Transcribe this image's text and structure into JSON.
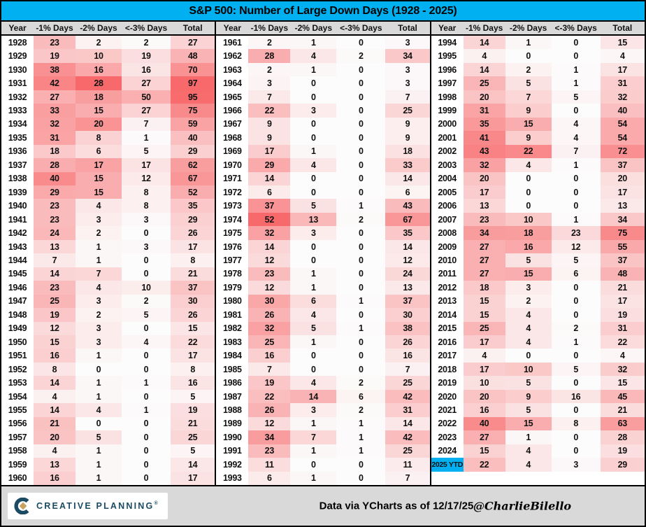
{
  "title": "S&P 500: Number of Large Down Days (1928 - 2025)",
  "colors": {
    "accent_cyan": "#00B0F0",
    "header_gray": "#D9D9D9",
    "heat_red_max": "#F8696B",
    "heat_min_white": "#FCFCFC",
    "logo_navy": "#1B4A63",
    "logo_gold": "#C8A35F"
  },
  "chart_data": {
    "type": "table",
    "title": "S&P 500: Number of Large Down Days (1928 - 2025)",
    "columns": [
      "Year",
      "-1% Days",
      "-2% Days",
      "<-3% Days",
      "Total"
    ],
    "heatmap": {
      "style": "white-to-red linear per column",
      "column_scale_max": [
        52,
        28,
        97,
        97
      ]
    },
    "highlighted_year": "2025 YTD",
    "groups": [
      {
        "rows": [
          [
            "1928",
            23,
            2,
            2,
            27
          ],
          [
            "1929",
            19,
            10,
            19,
            48
          ],
          [
            "1930",
            38,
            16,
            16,
            70
          ],
          [
            "1931",
            42,
            28,
            27,
            97
          ],
          [
            "1932",
            27,
            18,
            50,
            95
          ],
          [
            "1933",
            33,
            15,
            27,
            75
          ],
          [
            "1934",
            32,
            20,
            7,
            59
          ],
          [
            "1935",
            31,
            8,
            1,
            40
          ],
          [
            "1936",
            18,
            6,
            5,
            29
          ],
          [
            "1937",
            28,
            17,
            17,
            62
          ],
          [
            "1938",
            40,
            15,
            12,
            67
          ],
          [
            "1939",
            29,
            15,
            8,
            52
          ],
          [
            "1940",
            23,
            4,
            8,
            35
          ],
          [
            "1941",
            23,
            3,
            3,
            29
          ],
          [
            "1942",
            24,
            2,
            0,
            26
          ],
          [
            "1943",
            13,
            1,
            3,
            17
          ],
          [
            "1944",
            7,
            1,
            0,
            8
          ],
          [
            "1945",
            14,
            7,
            0,
            21
          ],
          [
            "1946",
            23,
            4,
            10,
            37
          ],
          [
            "1947",
            25,
            3,
            2,
            30
          ],
          [
            "1948",
            19,
            2,
            5,
            26
          ],
          [
            "1949",
            12,
            3,
            0,
            15
          ],
          [
            "1950",
            15,
            3,
            4,
            22
          ],
          [
            "1951",
            16,
            1,
            0,
            17
          ],
          [
            "1952",
            8,
            0,
            0,
            8
          ],
          [
            "1953",
            14,
            1,
            1,
            16
          ],
          [
            "1954",
            4,
            1,
            0,
            5
          ],
          [
            "1955",
            14,
            4,
            1,
            19
          ],
          [
            "1956",
            21,
            0,
            0,
            21
          ],
          [
            "1957",
            20,
            5,
            0,
            25
          ],
          [
            "1958",
            4,
            1,
            0,
            5
          ],
          [
            "1959",
            13,
            1,
            0,
            14
          ],
          [
            "1960",
            16,
            1,
            0,
            17
          ]
        ]
      },
      {
        "rows": [
          [
            "1961",
            2,
            1,
            0,
            3
          ],
          [
            "1962",
            28,
            4,
            2,
            34
          ],
          [
            "1963",
            2,
            1,
            0,
            3
          ],
          [
            "1964",
            3,
            0,
            0,
            3
          ],
          [
            "1965",
            7,
            0,
            0,
            7
          ],
          [
            "1966",
            22,
            3,
            0,
            25
          ],
          [
            "1967",
            9,
            0,
            0,
            9
          ],
          [
            "1968",
            9,
            0,
            0,
            9
          ],
          [
            "1969",
            17,
            1,
            0,
            18
          ],
          [
            "1970",
            29,
            4,
            0,
            33
          ],
          [
            "1971",
            14,
            0,
            0,
            14
          ],
          [
            "1972",
            6,
            0,
            0,
            6
          ],
          [
            "1973",
            37,
            5,
            1,
            43
          ],
          [
            "1974",
            52,
            13,
            2,
            67
          ],
          [
            "1975",
            32,
            3,
            0,
            35
          ],
          [
            "1976",
            14,
            0,
            0,
            14
          ],
          [
            "1977",
            12,
            0,
            0,
            12
          ],
          [
            "1978",
            23,
            1,
            0,
            24
          ],
          [
            "1979",
            12,
            1,
            0,
            13
          ],
          [
            "1980",
            30,
            6,
            1,
            37
          ],
          [
            "1981",
            26,
            4,
            0,
            30
          ],
          [
            "1982",
            32,
            5,
            1,
            38
          ],
          [
            "1983",
            25,
            1,
            0,
            26
          ],
          [
            "1984",
            16,
            0,
            0,
            16
          ],
          [
            "1985",
            7,
            0,
            0,
            7
          ],
          [
            "1986",
            19,
            4,
            2,
            25
          ],
          [
            "1987",
            22,
            14,
            6,
            42
          ],
          [
            "1988",
            26,
            3,
            2,
            31
          ],
          [
            "1989",
            12,
            1,
            1,
            14
          ],
          [
            "1990",
            34,
            7,
            1,
            42
          ],
          [
            "1991",
            23,
            1,
            1,
            25
          ],
          [
            "1992",
            11,
            0,
            0,
            11
          ],
          [
            "1993",
            6,
            1,
            0,
            7
          ]
        ]
      },
      {
        "rows": [
          [
            "1994",
            14,
            1,
            0,
            15
          ],
          [
            "1995",
            4,
            0,
            0,
            4
          ],
          [
            "1996",
            14,
            2,
            1,
            17
          ],
          [
            "1997",
            25,
            5,
            1,
            31
          ],
          [
            "1998",
            20,
            7,
            5,
            32
          ],
          [
            "1999",
            31,
            9,
            0,
            40
          ],
          [
            "2000",
            35,
            15,
            4,
            54
          ],
          [
            "2001",
            41,
            9,
            4,
            54
          ],
          [
            "2002",
            43,
            22,
            7,
            72
          ],
          [
            "2003",
            32,
            4,
            1,
            37
          ],
          [
            "2004",
            20,
            0,
            0,
            20
          ],
          [
            "2005",
            17,
            0,
            0,
            17
          ],
          [
            "2006",
            13,
            0,
            0,
            13
          ],
          [
            "2007",
            23,
            10,
            1,
            34
          ],
          [
            "2008",
            34,
            18,
            23,
            75
          ],
          [
            "2009",
            27,
            16,
            12,
            55
          ],
          [
            "2010",
            27,
            5,
            5,
            37
          ],
          [
            "2011",
            27,
            15,
            6,
            48
          ],
          [
            "2012",
            18,
            3,
            0,
            21
          ],
          [
            "2013",
            15,
            2,
            0,
            17
          ],
          [
            "2014",
            15,
            4,
            0,
            19
          ],
          [
            "2015",
            25,
            4,
            2,
            31
          ],
          [
            "2016",
            17,
            4,
            1,
            22
          ],
          [
            "2017",
            4,
            0,
            0,
            4
          ],
          [
            "2018",
            17,
            10,
            5,
            32
          ],
          [
            "2019",
            10,
            5,
            0,
            15
          ],
          [
            "2020",
            20,
            9,
            16,
            45
          ],
          [
            "2021",
            16,
            5,
            0,
            21
          ],
          [
            "2022",
            40,
            15,
            8,
            63
          ],
          [
            "2023",
            27,
            1,
            0,
            28
          ],
          [
            "2024",
            15,
            4,
            0,
            19
          ],
          [
            "2025 YTD",
            22,
            4,
            3,
            29
          ]
        ]
      }
    ]
  },
  "footer": {
    "logo_text": "CREATIVE PLANNING",
    "logo_reg_mark": "®",
    "source_note": "Data via YCharts as of 12/17/25",
    "author_handle": "@CharlieBilello"
  }
}
